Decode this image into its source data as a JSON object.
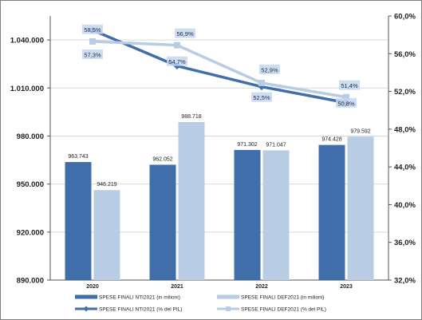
{
  "chart_data": {
    "type": "bar",
    "categories": [
      "2020",
      "2021",
      "2022",
      "2023"
    ],
    "series": [
      {
        "name": "SPESE FINALI NTI2021 (in milioni)",
        "kind": "bar",
        "axis": "left",
        "color": "#3f6eab",
        "values": [
          963743,
          962052,
          971302,
          974428
        ],
        "labels": [
          "963.743",
          "962.052",
          "971.302",
          "974.428"
        ]
      },
      {
        "name": "SPESE FINALI DEF2021 (in milioni)",
        "kind": "bar",
        "axis": "left",
        "color": "#b8cce4",
        "values": [
          946219,
          988718,
          971047,
          979592
        ],
        "labels": [
          "946.219",
          "988.718",
          "971.047",
          "979.592"
        ]
      },
      {
        "name": "SPESE FINALI NTI2021 (% del PIL)",
        "kind": "line",
        "axis": "right",
        "color": "#3f6eab",
        "values": [
          58.5,
          54.7,
          52.5,
          50.8
        ],
        "labels": [
          "58,5%",
          "54,7%",
          "52,5%",
          "50,8%"
        ]
      },
      {
        "name": "SPESE FINALI DEF2021 (% del PIL)",
        "kind": "line",
        "axis": "right",
        "color": "#b8cce4",
        "values": [
          57.3,
          56.9,
          52.9,
          51.4
        ],
        "labels": [
          "57,3%",
          "56,9%",
          "52,9%",
          "51,4%"
        ]
      }
    ],
    "ylim": [
      890000,
      1055000
    ],
    "y_ticks": [
      890000,
      920000,
      950000,
      980000,
      1010000,
      1040000
    ],
    "y_tick_labels": [
      "890.000",
      "920.000",
      "950.000",
      "980.000",
      "1.010.000",
      "1.040.000"
    ],
    "y2lim": [
      32,
      60
    ],
    "y2_ticks": [
      32,
      36,
      40,
      44,
      48,
      52,
      56,
      60
    ],
    "y2_tick_labels": [
      "32,0%",
      "36,0%",
      "40,0%",
      "44,0%",
      "48,0%",
      "52,0%",
      "56,0%",
      "60,0%"
    ],
    "grid": "horizontal",
    "legend_position": "bottom"
  }
}
